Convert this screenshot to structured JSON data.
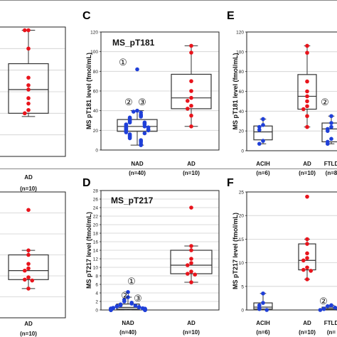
{
  "figure": {
    "panel_letters": [
      "C",
      "D",
      "E",
      "F"
    ]
  },
  "chart_data": [
    {
      "id": "B",
      "type": "box",
      "partial": true,
      "title": "",
      "ylabel": "",
      "ylim": [
        0,
        120
      ],
      "categories": [
        "AD"
      ],
      "group_sizes": [
        "(n=10)"
      ],
      "colors": {
        "AD": "#e8141c"
      },
      "boxes": [
        {
          "category": "AD",
          "min": 37,
          "q1": 40,
          "median": 62,
          "q3": 86,
          "max": 117
        }
      ],
      "points": [
        {
          "category": "AD",
          "values": [
            117,
            117,
            100,
            73,
            66,
            62,
            54,
            49,
            43,
            40
          ]
        }
      ]
    },
    {
      "id": "C",
      "type": "box",
      "title": "MS_pT181",
      "ylabel": "MS pT181 level (fmol/mL)",
      "ylim": [
        0,
        120
      ],
      "yticks": [
        0,
        20,
        40,
        60,
        80,
        100,
        120
      ],
      "categories": [
        "NAD",
        "AD"
      ],
      "group_sizes": [
        "(n=40)",
        "(n=10)"
      ],
      "colors": {
        "NAD": "#1f3fd8",
        "AD": "#e8141c"
      },
      "annotations": [
        "①",
        "②",
        "③"
      ],
      "boxes": [
        {
          "category": "NAD",
          "min": 5,
          "q1": 19,
          "median": 24,
          "q3": 31,
          "max": 40
        },
        {
          "category": "AD",
          "min": 24,
          "q1": 42,
          "median": 53,
          "q3": 77,
          "max": 106
        }
      ],
      "points": [
        {
          "category": "NAD",
          "values": [
            82,
            40,
            39,
            38,
            36,
            35,
            34,
            33,
            32,
            31,
            30,
            29,
            28,
            28,
            27,
            26,
            26,
            25,
            24,
            24,
            23,
            23,
            22,
            21,
            21,
            20,
            20,
            19,
            18,
            17,
            16,
            15,
            14,
            13,
            12,
            10,
            9,
            8,
            6,
            5
          ]
        },
        {
          "category": "AD",
          "values": [
            106,
            99,
            70,
            60,
            53,
            50,
            45,
            42,
            35,
            24
          ]
        }
      ]
    },
    {
      "id": "D",
      "type": "box",
      "title": "MS_pT217",
      "ylabel": "MS pT217 level (fmol/mL)",
      "ylim": [
        0,
        28
      ],
      "yticks": [
        0,
        2,
        4,
        6,
        8,
        10,
        12,
        14,
        16,
        18,
        20,
        22,
        24,
        26,
        28
      ],
      "categories": [
        "NAD",
        "AD"
      ],
      "group_sizes": [
        "(n=40)",
        "(n=10)"
      ],
      "colors": {
        "NAD": "#1f3fd8",
        "AD": "#e8141c"
      },
      "annotations": [
        "①",
        "②",
        "③"
      ],
      "boxes": [
        {
          "category": "NAD",
          "min": 0,
          "q1": 0.2,
          "median": 0.6,
          "q3": 1.4,
          "max": 3.0
        },
        {
          "category": "AD",
          "min": 6.5,
          "q1": 8.5,
          "median": 10.5,
          "q3": 14,
          "max": 15
        }
      ],
      "points": [
        {
          "category": "NAD",
          "values": [
            4.2,
            3.0,
            2.4,
            2.0,
            1.7,
            1.5,
            1.3,
            1.1,
            1.0,
            0.9,
            0.8,
            0.7,
            0.6,
            0.5,
            0.45,
            0.4,
            0.35,
            0.3,
            0.3,
            0.25,
            0.2,
            0.2,
            0.15,
            0.1,
            0.1,
            0.1,
            0.05,
            0.05,
            0,
            0,
            0,
            0,
            0,
            0,
            0,
            0,
            0,
            0,
            0,
            0
          ]
        },
        {
          "category": "AD",
          "values": [
            24,
            15,
            14,
            12,
            11,
            10.5,
            9,
            8.5,
            8.3,
            6.5
          ]
        }
      ]
    },
    {
      "id": "E",
      "type": "box",
      "partial": true,
      "title": "",
      "ylabel": "MS pT181 level (fmol/mL)",
      "ylim": [
        0,
        120
      ],
      "yticks": [
        0,
        20,
        40,
        60,
        80,
        100,
        120
      ],
      "categories": [
        "ACIH",
        "AD",
        "FTLD"
      ],
      "category_labels": [
        "ACIH",
        "AD",
        "FTLD"
      ],
      "group_sizes": [
        "(n=6)",
        "(n=10)",
        "(n=8"
      ],
      "colors": {
        "ACIH": "#1f3fd8",
        "AD": "#e8141c",
        "FTLD": "#1f3fd8"
      },
      "annotations": [
        "②"
      ],
      "boxes": [
        {
          "category": "ACIH",
          "min": 7,
          "q1": 11,
          "median": 19,
          "q3": 25,
          "max": 32
        },
        {
          "category": "AD",
          "min": 24,
          "q1": 42,
          "median": 55,
          "q3": 77,
          "max": 106
        },
        {
          "category": "FTLD",
          "min": 7,
          "q1": 9,
          "median": 22,
          "q3": 28,
          "max": 35
        }
      ],
      "points": [
        {
          "category": "ACIH",
          "values": [
            32,
            26,
            24,
            21,
            10,
            7
          ]
        },
        {
          "category": "AD",
          "values": [
            106,
            99,
            70,
            60,
            55,
            50,
            45,
            42,
            35,
            24
          ]
        },
        {
          "category": "FTLD",
          "values": [
            35,
            28,
            24,
            22,
            20,
            12,
            9,
            7
          ]
        }
      ]
    },
    {
      "id": "F",
      "type": "box",
      "partial": true,
      "title": "",
      "ylabel": "MS pT217 level (fmol/mL)",
      "ylim": [
        0,
        25
      ],
      "yticks": [
        0,
        5,
        10,
        15,
        20,
        25
      ],
      "categories": [
        "ACIH",
        "AD",
        "FTLD"
      ],
      "category_labels": [
        "ACIH",
        "AD",
        "FTLD"
      ],
      "group_sizes": [
        "(n=6)",
        "(n=10)",
        "(n="
      ],
      "colors": {
        "ACIH": "#1f3fd8",
        "AD": "#e8141c",
        "FTLD": "#1f3fd8"
      },
      "annotations": [
        "②"
      ],
      "boxes": [
        {
          "category": "ACIH",
          "min": 0,
          "q1": 0.2,
          "median": 0.6,
          "q3": 1.5,
          "max": 3.5
        },
        {
          "category": "AD",
          "min": 6.5,
          "q1": 8.5,
          "median": 10.5,
          "q3": 14,
          "max": 15
        },
        {
          "category": "FTLD",
          "min": 0,
          "q1": 0.1,
          "median": 0.3,
          "q3": 0.6,
          "max": 1.0
        }
      ],
      "points": [
        {
          "category": "ACIH",
          "values": [
            3.5,
            1.5,
            1.0,
            0.5,
            0.2,
            0
          ]
        },
        {
          "category": "AD",
          "values": [
            24,
            15,
            14,
            12,
            11,
            10.5,
            9,
            8.5,
            8.3,
            6.5
          ]
        },
        {
          "category": "FTLD",
          "values": [
            1.0,
            0.8,
            0.5,
            0.3,
            0.2,
            0.1,
            0,
            0
          ]
        }
      ]
    },
    {
      "id": "H",
      "type": "box",
      "partial": true,
      "title": "",
      "ylabel": "",
      "ylim": [
        0,
        28
      ],
      "categories": [
        "AD"
      ],
      "group_sizes": [
        "(n=10)"
      ],
      "colors": {
        "AD": "#e8141c"
      },
      "boxes": [
        {
          "category": "AD",
          "min": 6.5,
          "q1": 8.5,
          "median": 10.5,
          "q3": 14,
          "max": 15
        }
      ],
      "points": [
        {
          "category": "AD",
          "values": [
            24,
            15,
            14,
            12,
            11,
            10.5,
            9,
            8.5,
            8.3,
            6.5
          ]
        }
      ]
    }
  ]
}
